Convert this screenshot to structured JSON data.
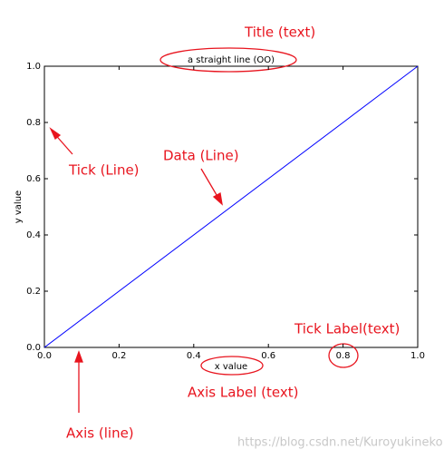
{
  "chart_data": {
    "type": "line",
    "title": "a straight line (OO)",
    "x_label": "x value",
    "y_label": "y value",
    "x": [
      0,
      1
    ],
    "values": [
      0,
      1
    ],
    "color": "#0000ff",
    "xlim": [
      0,
      1
    ],
    "ylim": [
      0,
      1
    ],
    "xticks": [
      {
        "value": 0,
        "label": "0.0"
      },
      0.2,
      0.4,
      0.6,
      0.8,
      {
        "value": 1,
        "label": "1.0"
      }
    ],
    "yticks": [
      {
        "value": 0,
        "label": "0.0"
      },
      0.2,
      0.4,
      0.6,
      0.8,
      {
        "value": 1,
        "label": "1.0"
      }
    ],
    "grid": false,
    "annotations": [
      "Title (text)",
      "Tick (Line)",
      "Data (Line)",
      "Tick Label(text)",
      "Axis Label (text)",
      "Axis (line)"
    ]
  },
  "watermark": "https://blog.csdn.net/Kuroyukineko"
}
